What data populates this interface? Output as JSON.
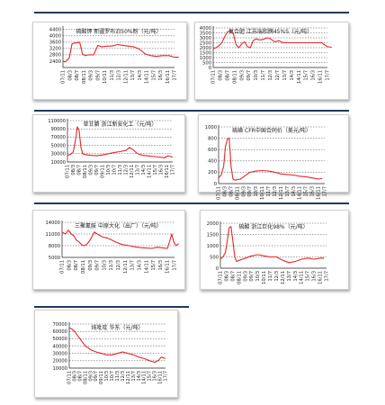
{
  "line_color": "#e8252a",
  "rule_color": "#1f3b5b",
  "chart_data": [
    {
      "type": "line",
      "title": "硫酸钾 新疆罗布泊50%粉（元/吨）",
      "y_ticks": [
        2400,
        2800,
        3200,
        3600,
        4000,
        4400
      ],
      "ylim": [
        2000,
        4500
      ],
      "x_ticks": [
        "07/11",
        "08/3",
        "08/7",
        "08/11",
        "09/3",
        "09/7",
        "10/11",
        "11/3",
        "12/3",
        "12/11",
        "13/7",
        "14/3",
        "14/11",
        "15/7",
        "16/3",
        "16/11",
        "17/7"
      ],
      "series": [
        {
          "x": [
            0,
            0.3,
            0.9,
            1.3,
            1.7,
            2.0,
            2.4,
            2.8,
            3.2,
            3.6,
            4.4,
            5.0,
            5.6,
            6.3,
            7.0,
            7.8,
            8.6,
            9.3,
            10.2,
            11.0,
            11.8,
            12.6,
            13.4,
            14.3,
            15.2,
            16.0,
            16.6
          ],
          "values": [
            2400,
            2350,
            2600,
            3500,
            3550,
            3550,
            3600,
            2850,
            2750,
            2800,
            2800,
            3400,
            3300,
            3350,
            3350,
            3450,
            3400,
            3350,
            3300,
            3150,
            2850,
            2750,
            2700,
            2750,
            2750,
            2650,
            2650
          ]
        }
      ]
    },
    {
      "type": "line",
      "title": "复合肥 江苏瑞和牌45%S（元/吨）",
      "y_ticks": [
        0,
        500,
        1000,
        1500,
        2000,
        2500,
        3000,
        3500,
        4000
      ],
      "ylim": [
        0,
        4000
      ],
      "x_ticks": [
        "07/11",
        "08/3",
        "08/7",
        "08/11",
        "09/3",
        "09/7",
        "10/3",
        "11/7",
        "12/3",
        "12/7",
        "13/7",
        "14/3",
        "14/11",
        "15/7",
        "16/3",
        "16/11",
        "17/7"
      ],
      "series": [
        {
          "x": [
            0,
            0.4,
            0.8,
            1.2,
            1.6,
            2.0,
            2.4,
            2.8,
            3.2,
            3.6,
            4.0,
            4.4,
            4.8,
            5.2,
            5.6,
            6.0,
            6.4,
            6.8,
            7.2,
            7.6,
            8.0,
            8.6,
            9.2,
            9.8,
            10.4,
            11.2,
            12.0,
            12.8,
            13.6,
            14.4,
            15.2,
            16.0,
            16.6
          ],
          "values": [
            1900,
            2000,
            2200,
            2500,
            3100,
            3600,
            3700,
            3500,
            2300,
            2000,
            2400,
            2600,
            2100,
            2000,
            2700,
            2900,
            2800,
            2800,
            2900,
            3000,
            2900,
            2600,
            2700,
            2500,
            2500,
            2500,
            2500,
            2500,
            2500,
            2500,
            2500,
            2100,
            2050
          ]
        }
      ]
    },
    {
      "type": "line",
      "title": "草甘膦 浙江新安化工（元/吨）",
      "y_ticks": [
        10000,
        30000,
        50000,
        70000,
        90000,
        110000
      ],
      "ylim": [
        10000,
        110000
      ],
      "x_ticks": [
        "07/11",
        "08/3",
        "08/7",
        "08/11",
        "09/3",
        "09/7",
        "09/11",
        "10/3",
        "10/7",
        "11/3",
        "12/3",
        "12/11",
        "13/7",
        "14/3",
        "14/11",
        "15/7",
        "16/3",
        "16/11",
        "17/7"
      ],
      "series": [
        {
          "x": [
            0,
            0.5,
            1.0,
            1.4,
            1.7,
            2.0,
            2.3,
            2.6,
            3.0,
            3.5,
            4.0,
            5.0,
            6.0,
            7.0,
            8.0,
            9.0,
            10.0,
            10.6,
            11.2,
            11.8,
            12.4,
            13.0,
            13.6,
            14.2,
            15.0,
            15.8,
            16.6,
            17.2,
            18.0
          ],
          "values": [
            26000,
            28000,
            35000,
            65000,
            95000,
            85000,
            45000,
            30000,
            28000,
            27000,
            26000,
            25000,
            27000,
            30000,
            33000,
            35000,
            38000,
            45000,
            40000,
            32000,
            28000,
            26000,
            25000,
            24000,
            23000,
            22000,
            20000,
            25000,
            22000
          ]
        }
      ]
    },
    {
      "type": "line",
      "title": "硫磺 CFR中国合同价（美元/吨）",
      "y_ticks": [
        0,
        200,
        400,
        600,
        800,
        1000
      ],
      "ylim": [
        0,
        1000
      ],
      "x_ticks": [
        "07/11",
        "08/3",
        "08/7",
        "08/11",
        "09/3",
        "09/7",
        "10/3",
        "10/11",
        "11/7",
        "12/3",
        "12/11",
        "13/7",
        "14/3",
        "14/11",
        "15/7",
        "16/3",
        "16/11",
        "17/7"
      ],
      "series": [
        {
          "x": [
            0,
            0.4,
            0.8,
            1.1,
            1.4,
            1.7,
            2.0,
            2.3,
            2.6,
            3.0,
            3.5,
            4.0,
            5.0,
            6.0,
            7.0,
            8.0,
            9.0,
            10.0,
            11.0,
            12.0,
            13.0,
            14.0,
            15.0,
            16.0,
            16.6
          ],
          "values": [
            100,
            150,
            300,
            650,
            780,
            800,
            300,
            80,
            60,
            70,
            80,
            120,
            200,
            220,
            230,
            220,
            200,
            170,
            160,
            150,
            130,
            120,
            100,
            80,
            90
          ]
        }
      ]
    },
    {
      "type": "line",
      "title": "三聚氰胺 中原大化（出厂）（元/吨）",
      "y_ticks": [
        5000,
        8000,
        11000,
        14000
      ],
      "ylim": [
        5000,
        14000
      ],
      "x_ticks": [
        "07/11",
        "08/3",
        "08/7",
        "08/11",
        "09/3",
        "09/7",
        "10/3",
        "11/3",
        "12/3",
        "12/11",
        "13/7",
        "14/3",
        "14/11",
        "15/7",
        "16/3",
        "16/11",
        "17/7"
      ],
      "series": [
        {
          "x": [
            0,
            0.5,
            0.9,
            1.3,
            1.7,
            2.0,
            2.4,
            2.8,
            3.2,
            3.6,
            4.0,
            4.6,
            5.2,
            5.8,
            6.4,
            7.0,
            7.6,
            8.2,
            8.8,
            9.6,
            10.4,
            11.2,
            12.0,
            12.8,
            13.6,
            14.4,
            15.0,
            15.6,
            15.9,
            16.2,
            16.6
          ],
          "values": [
            11500,
            11000,
            12000,
            11000,
            10500,
            9500,
            9000,
            8200,
            8000,
            8500,
            9500,
            11500,
            10800,
            10200,
            10000,
            9500,
            9000,
            8500,
            8200,
            8000,
            7700,
            7500,
            7400,
            7300,
            7600,
            7400,
            7300,
            11000,
            9000,
            8000,
            8500
          ]
        }
      ]
    },
    {
      "type": "line",
      "title": "硫酸 浙江巨化98%（元/吨）",
      "y_ticks": [
        0,
        500,
        1000,
        1500,
        2000
      ],
      "ylim": [
        0,
        2000
      ],
      "x_ticks": [
        "07/11",
        "08/3",
        "08/7",
        "08/11",
        "09/3",
        "09/7",
        "10/3",
        "10/11",
        "11/7",
        "12/3",
        "12/11",
        "13/7",
        "14/3",
        "14/11",
        "15/7",
        "16/3",
        "16/11",
        "17/7"
      ],
      "series": [
        {
          "x": [
            0,
            0.4,
            0.8,
            1.1,
            1.4,
            1.7,
            2.0,
            2.3,
            2.6,
            3.0,
            3.5,
            4.0,
            5.0,
            6.0,
            7.0,
            8.0,
            9.0,
            10.0,
            11.0,
            12.0,
            13.0,
            14.0,
            15.0,
            16.0,
            16.6
          ],
          "values": [
            400,
            500,
            700,
            1200,
            1800,
            1850,
            1200,
            500,
            300,
            350,
            400,
            450,
            550,
            600,
            550,
            500,
            500,
            350,
            250,
            300,
            400,
            450,
            400,
            450,
            450
          ]
        }
      ]
    },
    {
      "type": "line",
      "title": "纯吡啶 华东（元/吨）",
      "y_ticks": [
        10000,
        20000,
        30000,
        40000,
        50000,
        60000,
        70000
      ],
      "ylim": [
        10000,
        70000
      ],
      "x_ticks": [
        "07/11",
        "08/3",
        "08/7",
        "08/11",
        "09/3",
        "09/7",
        "09/11",
        "10/3",
        "10/7",
        "11/3",
        "12/3",
        "12/11",
        "13/7",
        "14/3",
        "14/11",
        "15/7",
        "16/3",
        "16/11",
        "17/7"
      ],
      "series": [
        {
          "x": [
            0,
            0.5,
            1.0,
            1.5,
            2.0,
            2.5,
            3.0,
            3.5,
            4.0,
            5.0,
            6.0,
            7.0,
            8.0,
            9.0,
            10.0,
            11.0,
            12.0,
            13.0,
            14.0,
            15.0,
            16.0,
            16.6,
            17.2,
            18.0
          ],
          "values": [
            65000,
            63000,
            60000,
            55000,
            50000,
            45000,
            40000,
            38000,
            35000,
            32000,
            30000,
            28000,
            28000,
            30000,
            32000,
            30000,
            28000,
            25000,
            23000,
            20000,
            18000,
            20000,
            25000,
            23000
          ]
        }
      ]
    }
  ]
}
